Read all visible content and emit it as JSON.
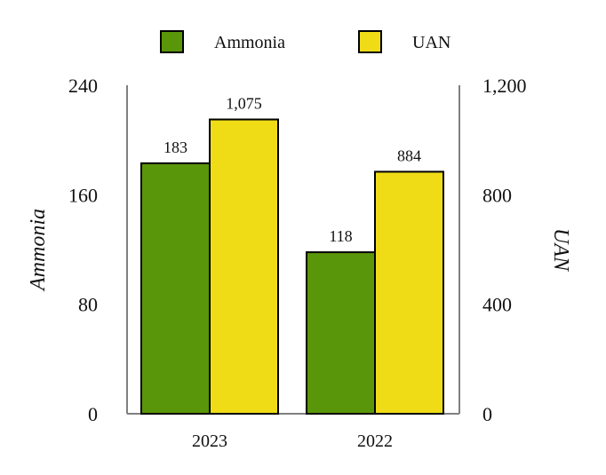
{
  "chart_data": {
    "type": "bar",
    "categories": [
      "2023",
      "2022"
    ],
    "series": [
      {
        "name": "Ammonia",
        "axis": "left",
        "color": "#5a960a",
        "values": [
          183,
          118
        ],
        "value_labels": [
          "183",
          "118"
        ]
      },
      {
        "name": "UAN",
        "axis": "right",
        "color": "#efdc17",
        "values": [
          1075,
          884
        ],
        "value_labels": [
          "1,075",
          "884"
        ]
      }
    ],
    "y_left": {
      "label": "Ammonia",
      "range": [
        0,
        240
      ],
      "ticks": [
        0,
        80,
        160,
        240
      ],
      "tick_labels": [
        "0",
        "80",
        "160",
        "240"
      ]
    },
    "y_right": {
      "label": "UAN",
      "range": [
        0,
        1200
      ],
      "ticks": [
        0,
        400,
        800,
        1200
      ],
      "tick_labels": [
        "0",
        "400",
        "800",
        "1,200"
      ]
    },
    "legend": {
      "position": "top",
      "items": [
        "Ammonia",
        "UAN"
      ]
    },
    "grid": false,
    "colors": {
      "axis": "#808080",
      "bar_outline": "#000000"
    }
  }
}
